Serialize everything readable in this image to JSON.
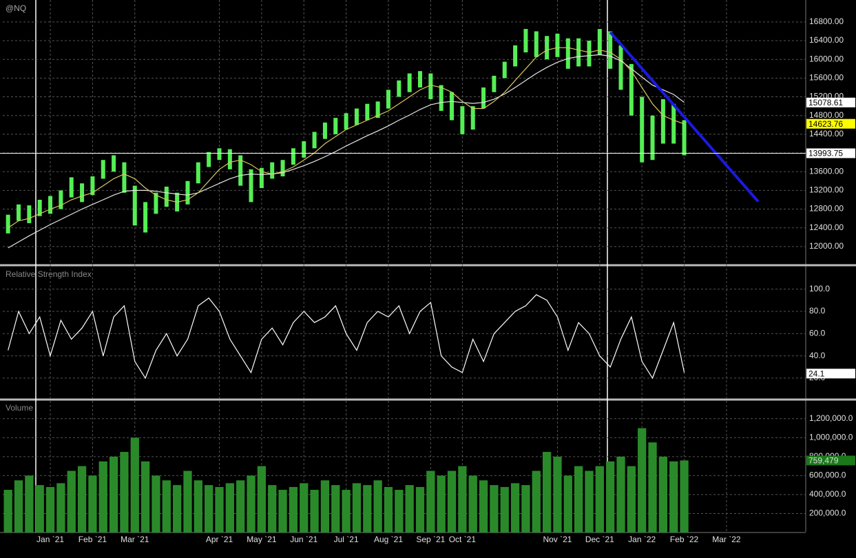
{
  "chart_data": [
    {
      "type": "ohlc",
      "title": "@NQ",
      "categories": [
        null,
        null,
        null,
        null,
        "Jan `21",
        null,
        null,
        null,
        "Feb `21",
        null,
        null,
        null,
        "Mar `21",
        null,
        null,
        null,
        null,
        null,
        null,
        null,
        "Apr `21",
        null,
        null,
        null,
        "May `21",
        null,
        null,
        null,
        "Jun `21",
        null,
        null,
        null,
        "Jul `21",
        null,
        null,
        null,
        "Aug `21",
        null,
        null,
        null,
        "Sep `21",
        null,
        null,
        "Oct `21",
        null,
        null,
        null,
        null,
        null,
        null,
        null,
        null,
        "Nov `21",
        null,
        null,
        null,
        "Dec `21",
        null,
        null,
        null,
        "Jan `22",
        null,
        null,
        null,
        "Feb `22",
        null,
        null,
        null,
        "Mar `22",
        null,
        null,
        null,
        null,
        null,
        null,
        null
      ],
      "high": [
        12680,
        12900,
        12880,
        13000,
        13080,
        13200,
        13480,
        13350,
        13500,
        13850,
        13950,
        13800,
        13300,
        12950,
        13150,
        13280,
        13150,
        13400,
        13800,
        14020,
        14100,
        14080,
        13950,
        13650,
        13680,
        13800,
        13850,
        14100,
        14250,
        14450,
        14650,
        14750,
        14850,
        14950,
        15050,
        15100,
        15350,
        15550,
        15700,
        15750,
        15700,
        15450,
        15300,
        15000,
        15000,
        15400,
        15650,
        15950,
        16300,
        16650,
        16600,
        16500,
        16550,
        16450,
        16450,
        16400,
        16650,
        16600,
        16300,
        15900,
        15200,
        14800,
        15150,
        15050,
        14700,
        null,
        null,
        null,
        null,
        null,
        null,
        null,
        null,
        null,
        null,
        null
      ],
      "low": [
        12280,
        12550,
        12500,
        12650,
        12700,
        12800,
        13050,
        12950,
        13100,
        13450,
        13600,
        13150,
        12450,
        12300,
        12700,
        12850,
        12750,
        12900,
        13350,
        13700,
        13850,
        13650,
        13300,
        12950,
        13250,
        13450,
        13500,
        13750,
        13900,
        14100,
        14300,
        14400,
        14500,
        14600,
        14700,
        14750,
        14950,
        15200,
        15300,
        15400,
        15150,
        14900,
        14700,
        14400,
        14500,
        14950,
        15300,
        15600,
        15850,
        16150,
        16050,
        16000,
        16050,
        15800,
        15850,
        15850,
        16100,
        15800,
        15350,
        14800,
        13800,
        13850,
        14200,
        14200,
        13950,
        null,
        null,
        null,
        null,
        null,
        null,
        null,
        null,
        null,
        null,
        null
      ],
      "ma_fast": [
        12400,
        12550,
        12600,
        12700,
        12800,
        12880,
        13000,
        13080,
        13150,
        13300,
        13450,
        13550,
        13450,
        13250,
        13100,
        13000,
        12950,
        13000,
        13150,
        13400,
        13650,
        13800,
        13850,
        13750,
        13600,
        13550,
        13600,
        13700,
        13850,
        14000,
        14200,
        14350,
        14500,
        14600,
        14700,
        14800,
        14900,
        15050,
        15200,
        15350,
        15450,
        15400,
        15300,
        15100,
        14950,
        14950,
        15100,
        15300,
        15550,
        15800,
        16050,
        16200,
        16250,
        16250,
        16200,
        16150,
        16200,
        16150,
        16000,
        15750,
        15400,
        15050,
        14800,
        14700,
        14620,
        null,
        null,
        null,
        null,
        null,
        null,
        null,
        null,
        null,
        null,
        null
      ],
      "ma_slow": [
        11970,
        12100,
        12230,
        12350,
        12470,
        12580,
        12690,
        12800,
        12900,
        13000,
        13100,
        13180,
        13200,
        13200,
        13180,
        13150,
        13120,
        13100,
        13150,
        13250,
        13350,
        13450,
        13520,
        13550,
        13540,
        13550,
        13580,
        13650,
        13730,
        13820,
        13920,
        14030,
        14150,
        14260,
        14370,
        14470,
        14580,
        14700,
        14810,
        14930,
        15030,
        15080,
        15100,
        15080,
        15060,
        15080,
        15150,
        15260,
        15400,
        15550,
        15700,
        15830,
        15940,
        16020,
        16060,
        16080,
        16100,
        16070,
        15970,
        15800,
        15620,
        15450,
        15350,
        15250,
        15080,
        null,
        null,
        null,
        null,
        null,
        null,
        null,
        null,
        null,
        null,
        null
      ],
      "trendline": [
        null,
        null,
        null,
        null,
        null,
        null,
        null,
        null,
        null,
        null,
        null,
        null,
        null,
        null,
        null,
        null,
        null,
        null,
        null,
        null,
        null,
        null,
        null,
        null,
        null,
        null,
        null,
        null,
        null,
        null,
        null,
        null,
        null,
        null,
        null,
        null,
        null,
        null,
        null,
        null,
        null,
        null,
        null,
        null,
        null,
        null,
        null,
        null,
        null,
        null,
        null,
        null,
        null,
        null,
        null,
        null,
        null,
        16580,
        16322,
        16063,
        15805,
        15546,
        15288,
        15029,
        14771,
        14512,
        14254,
        13995,
        13737,
        13478,
        13220,
        12961,
        null,
        null,
        null,
        null
      ],
      "color": "#55ee55",
      "ma_fast_color": "#d8c860",
      "ma_slow_color": "#e8e8e8",
      "trendline_color": "#1a1ae0",
      "ylim": [
        11630,
        17240
      ],
      "yticks": [
        {
          "value": 12000,
          "label": "12000.00"
        },
        {
          "value": 12400,
          "label": "12400.00"
        },
        {
          "value": 12800,
          "label": "12800.00"
        },
        {
          "value": 13200,
          "label": "13200.00"
        },
        {
          "value": 13600,
          "label": "13600.00"
        },
        {
          "value": 14000,
          "label": "14000.00"
        },
        {
          "value": 14400,
          "label": "14400.00"
        },
        {
          "value": 14800,
          "label": "14800.00"
        },
        {
          "value": 15200,
          "label": "15200.00"
        },
        {
          "value": 15600,
          "label": "15600.00"
        },
        {
          "value": 16000,
          "label": "16000.00"
        },
        {
          "value": 16400,
          "label": "16400.00"
        },
        {
          "value": 16800,
          "label": "16800.00"
        }
      ],
      "markers": [
        {
          "value": 15078.61,
          "color": "#ffffff",
          "line": false
        },
        {
          "value": 14623.76,
          "color": "#ffff00",
          "line": false
        },
        {
          "value": 13993.75,
          "color": "#ffffff",
          "line": true
        }
      ],
      "grid": true
    },
    {
      "type": "line",
      "title": "Relative Strength Index",
      "values": [
        45,
        80,
        60,
        75,
        40,
        72,
        55,
        65,
        80,
        40,
        75,
        85,
        35,
        20,
        45,
        60,
        40,
        55,
        85,
        92,
        80,
        55,
        40,
        25,
        55,
        65,
        50,
        70,
        80,
        70,
        75,
        85,
        60,
        45,
        70,
        80,
        75,
        85,
        60,
        80,
        88,
        40,
        30,
        25,
        55,
        35,
        60,
        70,
        80,
        85,
        95,
        90,
        75,
        45,
        70,
        60,
        40,
        30,
        55,
        75,
        35,
        20,
        45,
        70,
        25,
        null,
        null,
        null,
        null,
        null,
        null,
        null,
        null,
        null,
        null,
        null
      ],
      "color": "#ffffff",
      "ylim": [
        2,
        119
      ],
      "yticks": [
        {
          "value": 20,
          "label": "20.0"
        },
        {
          "value": 40,
          "label": "40.0"
        },
        {
          "value": 60,
          "label": "60.0"
        },
        {
          "value": 80,
          "label": "80.0"
        },
        {
          "value": 100,
          "label": "100.0"
        }
      ],
      "markers": [
        {
          "value": 24.1,
          "color": "#ffffff",
          "line": false
        }
      ],
      "grid": true
    },
    {
      "type": "bar",
      "title": "Volume",
      "values": [
        450000,
        550000,
        600000,
        500000,
        480000,
        520000,
        650000,
        700000,
        600000,
        750000,
        800000,
        850000,
        1000000,
        750000,
        600000,
        550000,
        500000,
        650000,
        550000,
        500000,
        480000,
        520000,
        550000,
        600000,
        700000,
        500000,
        450000,
        480000,
        520000,
        450000,
        550000,
        500000,
        450000,
        520000,
        500000,
        550000,
        480000,
        450000,
        500000,
        480000,
        650000,
        600000,
        650000,
        700000,
        600000,
        550000,
        500000,
        480000,
        520000,
        500000,
        650000,
        850000,
        800000,
        600000,
        700000,
        650000,
        700000,
        750000,
        800000,
        700000,
        1100000,
        950000,
        800000,
        750000,
        760000,
        null,
        null,
        null,
        null,
        null,
        null,
        null,
        null,
        null,
        null,
        null
      ],
      "color": "#2a8a2a",
      "ylim": [
        0,
        1380000
      ],
      "yticks": [
        {
          "value": 200000,
          "label": "200,000.0"
        },
        {
          "value": 400000,
          "label": "400,000.0"
        },
        {
          "value": 600000,
          "label": "600,000.0"
        },
        {
          "value": 800000,
          "label": "800,000.0"
        },
        {
          "value": 1000000,
          "label": "1,000,000.0"
        },
        {
          "value": 1200000,
          "label": "1,200,000.0"
        }
      ],
      "markers": [
        {
          "value": 759479,
          "label": "759,479",
          "color": "#1a7a1a",
          "line": false
        }
      ],
      "grid": true
    }
  ]
}
